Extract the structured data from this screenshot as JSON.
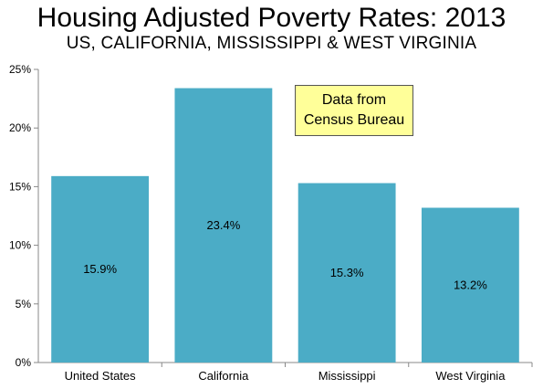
{
  "chart_data": {
    "type": "bar",
    "title": "Housing Adjusted Poverty Rates: 2013",
    "subtitle": "US, CALIFORNIA, MISSISSIPPI & WEST VIRGINIA",
    "categories": [
      "United States",
      "California",
      "Mississippi",
      "West Virginia"
    ],
    "values": [
      15.9,
      23.4,
      15.3,
      13.2
    ],
    "data_labels": [
      "15.9%",
      "23.4%",
      "15.3%",
      "13.2%"
    ],
    "ylim": [
      0,
      25
    ],
    "yticks": [
      0,
      5,
      10,
      15,
      20,
      25
    ],
    "ytick_labels": [
      "0%",
      "5%",
      "10%",
      "15%",
      "20%",
      "25%"
    ],
    "xlabel": "",
    "ylabel": "",
    "grid": false,
    "bar_color": "#4bacc6",
    "annotation": [
      "Data from",
      "Census Bureau"
    ]
  }
}
